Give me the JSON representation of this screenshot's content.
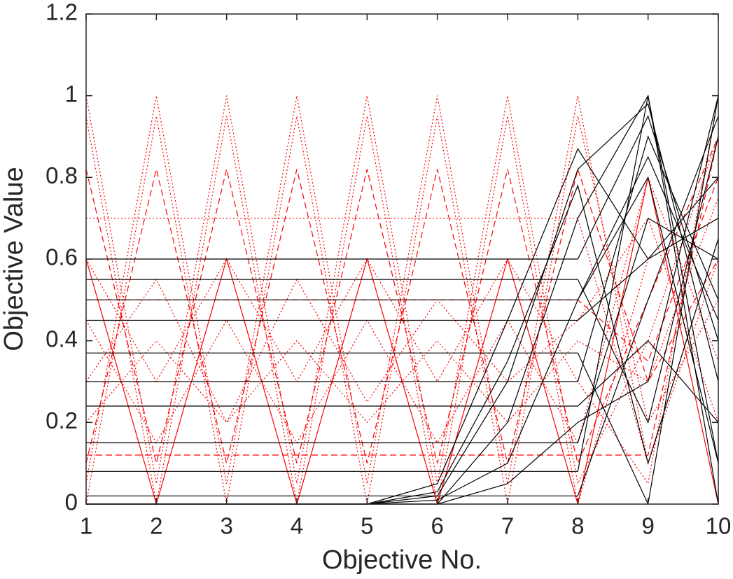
{
  "chart_data": {
    "type": "line",
    "xlabel": "Objective No.",
    "ylabel": "Objective Value",
    "x": [
      1,
      2,
      3,
      4,
      5,
      6,
      7,
      8,
      9,
      10
    ],
    "xlim": [
      1,
      10
    ],
    "xticks": [
      1,
      2,
      3,
      4,
      5,
      6,
      7,
      8,
      9,
      10
    ],
    "ylim": [
      0,
      1.2
    ],
    "yticks": [
      0,
      0.2,
      0.4,
      0.6,
      0.8,
      1,
      1.2
    ],
    "series": [
      {
        "color": "#ff0000",
        "dash": "dotted",
        "values": [
          0.95,
          0,
          0.95,
          0,
          0.95,
          0,
          0.95,
          0,
          0.6,
          0.7
        ]
      },
      {
        "color": "#ff0000",
        "dash": "dotted",
        "values": [
          0,
          0.95,
          0,
          0.95,
          0,
          0.95,
          0,
          0.95,
          0.2,
          0.5
        ]
      },
      {
        "color": "#ff0000",
        "dash": "dotted",
        "values": [
          1,
          0.05,
          1,
          0.05,
          1,
          0.05,
          1,
          0.05,
          0.4,
          0.9
        ]
      },
      {
        "color": "#ff0000",
        "dash": "dotted",
        "values": [
          0.05,
          1,
          0.05,
          1,
          0.05,
          1,
          0.05,
          1,
          0.1,
          0.6
        ]
      },
      {
        "color": "#ff0000",
        "dash": "dotted",
        "values": [
          0.7,
          0.7,
          0.7,
          0.7,
          0.7,
          0.7,
          0.7,
          0.7,
          0.1,
          0.65
        ]
      },
      {
        "color": "#ff0000",
        "dash": "dotted",
        "values": [
          0.6,
          0.3,
          0.6,
          0.3,
          0.6,
          0.3,
          0.6,
          0.3,
          0.05,
          1
        ]
      },
      {
        "color": "#ff0000",
        "dash": "dotted",
        "values": [
          0.3,
          0.55,
          0.2,
          0.55,
          0.25,
          0.5,
          0.3,
          0.45,
          0.7,
          0.2
        ]
      },
      {
        "color": "#ff0000",
        "dash": "dotted",
        "values": [
          0.45,
          0.15,
          0.45,
          0.15,
          0.45,
          0.15,
          0.45,
          0.15,
          0.8,
          0.35
        ]
      },
      {
        "color": "#ff0000",
        "dash": "dotted",
        "values": [
          0.2,
          0.4,
          0.2,
          0.4,
          0.2,
          0.4,
          0.2,
          0.4,
          0.3,
          0.75
        ]
      },
      {
        "color": "#ff0000",
        "dash": "dashed",
        "values": [
          0.82,
          0.1,
          0.82,
          0.1,
          0.82,
          0.1,
          0.82,
          0.1,
          0.5,
          0.9
        ]
      },
      {
        "color": "#ff0000",
        "dash": "dashed",
        "values": [
          0.1,
          0.82,
          0.1,
          0.82,
          0.1,
          0.82,
          0.1,
          0.82,
          0.3,
          0.6
        ]
      },
      {
        "color": "#ff0000",
        "dash": "dashed",
        "values": [
          0.5,
          0.5,
          0.5,
          0.5,
          0.5,
          0.5,
          0.5,
          0.5,
          0.35,
          0.8
        ]
      },
      {
        "color": "#ff0000",
        "dash": "dashed",
        "values": [
          0.12,
          0.12,
          0.12,
          0.12,
          0.12,
          0.12,
          0.12,
          0.12,
          0.12,
          0.9
        ]
      },
      {
        "color": "#ff0000",
        "dash": "solid",
        "values": [
          0.6,
          0,
          0.6,
          0,
          0.6,
          0,
          0.6,
          0,
          0.8,
          0
        ]
      },
      {
        "color": "#000000",
        "dash": "solid",
        "values": [
          0.6,
          0.6,
          0.6,
          0.6,
          0.6,
          0.6,
          0.6,
          0.6,
          0.95,
          0.4
        ]
      },
      {
        "color": "#000000",
        "dash": "solid",
        "values": [
          0.55,
          0.55,
          0.55,
          0.55,
          0.55,
          0.55,
          0.55,
          0.55,
          0.2,
          0.9
        ]
      },
      {
        "color": "#000000",
        "dash": "solid",
        "values": [
          0.5,
          0.5,
          0.5,
          0.5,
          0.5,
          0.5,
          0.5,
          0.5,
          0.8,
          0.1
        ]
      },
      {
        "color": "#000000",
        "dash": "solid",
        "values": [
          0.45,
          0.45,
          0.45,
          0.45,
          0.45,
          0.45,
          0.45,
          0.45,
          0.6,
          0.7
        ]
      },
      {
        "color": "#000000",
        "dash": "solid",
        "values": [
          0.37,
          0.37,
          0.37,
          0.37,
          0.37,
          0.37,
          0.37,
          0.37,
          0,
          1
        ]
      },
      {
        "color": "#000000",
        "dash": "solid",
        "values": [
          0.3,
          0.3,
          0.3,
          0.3,
          0.3,
          0.3,
          0.3,
          0.3,
          0.9,
          0.5
        ]
      },
      {
        "color": "#000000",
        "dash": "solid",
        "values": [
          0.24,
          0.24,
          0.24,
          0.24,
          0.24,
          0.24,
          0.24,
          0.24,
          0.4,
          0.2
        ]
      },
      {
        "color": "#000000",
        "dash": "solid",
        "values": [
          0.15,
          0.15,
          0.15,
          0.15,
          0.15,
          0.15,
          0.15,
          0.15,
          0.7,
          0.6
        ]
      },
      {
        "color": "#000000",
        "dash": "solid",
        "values": [
          0.08,
          0.08,
          0.08,
          0.08,
          0.08,
          0.08,
          0.08,
          0.08,
          1,
          0
        ]
      },
      {
        "color": "#000000",
        "dash": "solid",
        "values": [
          0.02,
          0.02,
          0.02,
          0.02,
          0.02,
          0.02,
          0.02,
          0.02,
          0.5,
          0.95
        ]
      },
      {
        "color": "#000000",
        "dash": "solid",
        "values": [
          0,
          0,
          0,
          0,
          0,
          0.02,
          0.3,
          0.82,
          0.98,
          0.3
        ]
      },
      {
        "color": "#000000",
        "dash": "solid",
        "values": [
          0,
          0,
          0,
          0,
          0,
          0.05,
          0.45,
          0.87,
          0.6,
          0.8
        ]
      },
      {
        "color": "#000000",
        "dash": "solid",
        "values": [
          0,
          0,
          0,
          0,
          0,
          0,
          0.2,
          0.7,
          1,
          0.1
        ]
      },
      {
        "color": "#000000",
        "dash": "solid",
        "values": [
          0,
          0,
          0,
          0,
          0,
          0.01,
          0.1,
          0.5,
          0.85,
          0.45
        ]
      },
      {
        "color": "#000000",
        "dash": "solid",
        "values": [
          0,
          0,
          0,
          0,
          0,
          0,
          0.05,
          0.2,
          0.3,
          1
        ]
      },
      {
        "color": "#000000",
        "dash": "solid",
        "values": [
          0,
          0,
          0,
          0,
          0,
          0.03,
          0.35,
          0.78,
          0.1,
          0.65
        ]
      }
    ]
  }
}
